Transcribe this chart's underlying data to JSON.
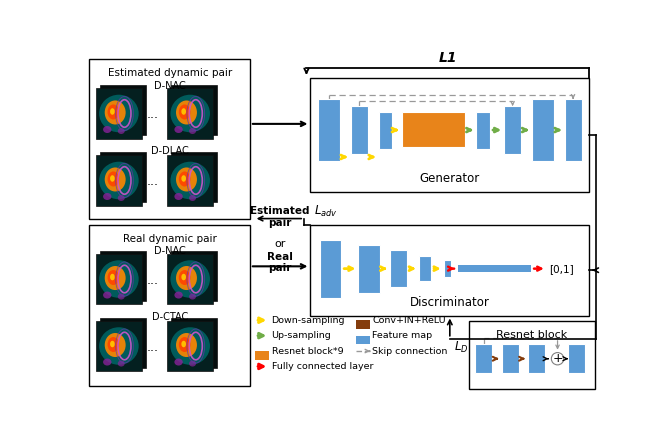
{
  "bg_color": "#ffffff",
  "blue_color": "#5B9BD5",
  "orange_color": "#E8841A",
  "yellow_color": "#FFD700",
  "green_color": "#70AD47",
  "red_color": "#FF0000",
  "brown_color": "#843C0C",
  "gray_color": "#999999",
  "left_panel_title1": "Estimated dynamic pair",
  "left_panel_title2": "Real dynamic pair",
  "label_dnac1": "D-NAC",
  "label_ddlac": "D-DLAC",
  "label_dnac2": "D-NAC",
  "label_dctac": "D-CTAC",
  "generator_label": "Generator",
  "discriminator_label": "Discriminator",
  "l1_label": "L1",
  "output_label": "[0,1]",
  "estimated_pair_label": "Estimated\npair",
  "or_label": "or",
  "real_pair_label": "Real\npair",
  "legend_down": "Down-sampling",
  "legend_up": "Up-sampling",
  "legend_resnet": "Resnet block*9",
  "legend_fc": "Fully connected layer",
  "legend_conv": "Conv+IN+ReLU",
  "legend_feature": "Feature map",
  "legend_skip": "Skip connection",
  "resnet_block_label": "Resnet block"
}
